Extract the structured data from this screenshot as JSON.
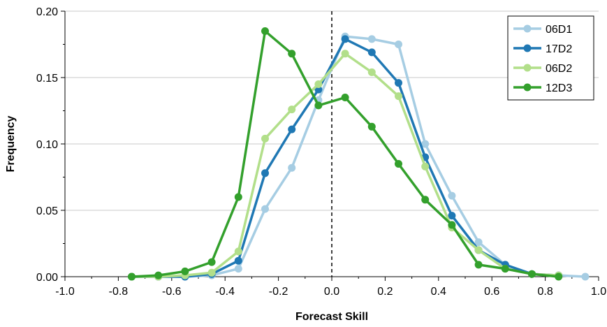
{
  "chart_data": {
    "type": "line",
    "title": "",
    "xlabel": "Forecast Skill",
    "ylabel": "Frequency",
    "xlim": [
      -1.0,
      1.0
    ],
    "ylim": [
      0.0,
      0.2
    ],
    "x_ticks": [
      -1.0,
      -0.8,
      -0.6,
      -0.4,
      -0.2,
      0.0,
      0.2,
      0.4,
      0.6,
      0.8,
      1.0
    ],
    "x_tick_labels": [
      "-1.0",
      "-0.8",
      "-0.6",
      "-0.4",
      "-0.2",
      "0.0",
      "0.2",
      "0.4",
      "0.6",
      "0.8",
      "1.0"
    ],
    "y_ticks": [
      0.0,
      0.05,
      0.1,
      0.15,
      0.2
    ],
    "y_tick_labels": [
      "0.00",
      "0.05",
      "0.10",
      "0.15",
      "0.20"
    ],
    "grid": "horizontal",
    "legend_position": "top-right",
    "reference_line": {
      "x": 0.0,
      "style": "dashed"
    },
    "series": [
      {
        "name": "06D1",
        "color": "#a6cde3",
        "x": [
          -0.75,
          -0.65,
          -0.55,
          -0.45,
          -0.35,
          -0.25,
          -0.15,
          -0.05,
          0.05,
          0.15,
          0.25,
          0.35,
          0.45,
          0.55,
          0.65,
          0.75,
          0.85,
          0.95
        ],
        "values": [
          0.0,
          0.0,
          0.0,
          0.001,
          0.006,
          0.051,
          0.082,
          0.133,
          0.181,
          0.179,
          0.175,
          0.1,
          0.061,
          0.026,
          0.009,
          0.002,
          0.001,
          0.0
        ]
      },
      {
        "name": "17D2",
        "color": "#1f78b4",
        "x": [
          -0.75,
          -0.65,
          -0.55,
          -0.45,
          -0.35,
          -0.25,
          -0.15,
          -0.05,
          0.05,
          0.15,
          0.25,
          0.35,
          0.45,
          0.55,
          0.65,
          0.75,
          0.85
        ],
        "values": [
          0.0,
          0.0,
          0.0,
          0.002,
          0.012,
          0.078,
          0.111,
          0.141,
          0.179,
          0.169,
          0.146,
          0.09,
          0.046,
          0.02,
          0.009,
          0.002,
          0.001
        ]
      },
      {
        "name": "06D2",
        "color": "#b2df8a",
        "x": [
          -0.75,
          -0.65,
          -0.55,
          -0.45,
          -0.35,
          -0.25,
          -0.15,
          -0.05,
          0.05,
          0.15,
          0.25,
          0.35,
          0.45,
          0.55,
          0.65,
          0.75,
          0.85
        ],
        "values": [
          0.0,
          0.0,
          0.001,
          0.003,
          0.019,
          0.104,
          0.126,
          0.145,
          0.168,
          0.154,
          0.136,
          0.083,
          0.037,
          0.02,
          0.006,
          0.002,
          0.001
        ]
      },
      {
        "name": "12D3",
        "color": "#33a02c",
        "x": [
          -0.75,
          -0.65,
          -0.55,
          -0.45,
          -0.35,
          -0.25,
          -0.15,
          -0.05,
          0.05,
          0.15,
          0.25,
          0.35,
          0.45,
          0.55,
          0.65,
          0.75,
          0.85
        ],
        "values": [
          0.0,
          0.001,
          0.004,
          0.011,
          0.06,
          0.185,
          0.168,
          0.129,
          0.135,
          0.113,
          0.085,
          0.058,
          0.039,
          0.009,
          0.006,
          0.002,
          0.0
        ]
      }
    ]
  }
}
